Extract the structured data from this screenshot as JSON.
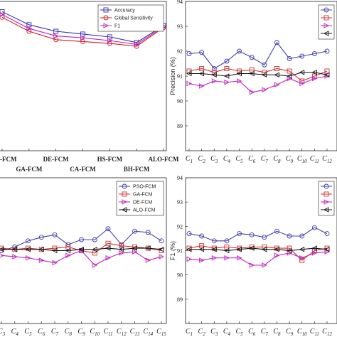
{
  "chart_data": [
    {
      "type": "line",
      "panel": "top-left",
      "categories": [
        "PSO-FCM",
        "GA-FCM",
        "DE-FCM",
        "CA-FCM",
        "HS-FCM",
        "BH-FCM",
        "ALO-FCM"
      ],
      "series": [
        {
          "name": "Accuracy",
          "values": [
            92.9,
            91.5,
            90.8,
            90.5,
            90.2,
            89.6,
            91.4
          ],
          "color": "#3030a8",
          "marker": "square"
        },
        {
          "name": "Global Sensitivity",
          "values": [
            92.3,
            90.8,
            89.9,
            89.7,
            89.5,
            89.2,
            91.2
          ],
          "color": "#d02020",
          "marker": "circle"
        },
        {
          "name": "F1",
          "values": [
            92.6,
            91.1,
            90.3,
            90.1,
            89.8,
            89.4,
            91.3
          ],
          "color": "#c020c0",
          "marker": "triangle-right"
        }
      ],
      "ylim": [
        78,
        94
      ],
      "legend": "top-right",
      "grid": false
    },
    {
      "type": "line",
      "panel": "top-right",
      "categories": [
        "1",
        "2",
        "3",
        "4",
        "5",
        "6",
        "7",
        "8",
        "9",
        "10",
        "11",
        "12"
      ],
      "ylabel": "Precision (%)",
      "ylim": [
        88,
        94
      ],
      "yticks": [
        89,
        90,
        91,
        92,
        93,
        94
      ],
      "series": [
        {
          "values": [
            91.9,
            91.95,
            91.3,
            91.6,
            92.0,
            91.75,
            91.45,
            92.35,
            91.7,
            91.8,
            91.9,
            92.0
          ],
          "color": "#4040b0",
          "marker": "circle"
        },
        {
          "values": [
            91.2,
            91.3,
            91.15,
            91.3,
            91.2,
            91.25,
            91.15,
            91.3,
            91.2,
            90.8,
            91.0,
            91.2
          ],
          "color": "#d03030",
          "marker": "square"
        },
        {
          "values": [
            90.7,
            90.6,
            90.8,
            90.75,
            90.8,
            90.35,
            90.45,
            90.65,
            90.9,
            90.7,
            90.9,
            91.0
          ],
          "color": "#c020c0",
          "marker": "triangle-right"
        },
        {
          "values": [
            91.1,
            91.1,
            91.05,
            91.0,
            91.1,
            91.1,
            91.05,
            91.05,
            91.0,
            91.15,
            91.15,
            91.05
          ],
          "color": "#111111",
          "marker": "triangle-left"
        }
      ],
      "legend": "top-right",
      "grid": false
    },
    {
      "type": "line",
      "panel": "bottom-left",
      "categories": [
        "3",
        "4",
        "5",
        "6",
        "7",
        "8",
        "9",
        "10",
        "11",
        "12",
        "13",
        "14",
        "15"
      ],
      "ylim": [
        88,
        94
      ],
      "series": [
        {
          "name": "PSO-FCM",
          "values": [
            91.0,
            91.15,
            91.4,
            91.55,
            91.65,
            91.25,
            91.45,
            91.45,
            91.9,
            91.25,
            91.8,
            91.75,
            91.4
          ],
          "color": "#4040b0",
          "marker": "circle"
        },
        {
          "name": "GA-FCM",
          "values": [
            91.1,
            91.05,
            91.1,
            91.05,
            91.1,
            91.15,
            91.0,
            90.9,
            91.3,
            91.2,
            91.15,
            91.1,
            91.0
          ],
          "color": "#d03030",
          "marker": "square"
        },
        {
          "name": "DE-FCM",
          "values": [
            90.8,
            90.75,
            90.7,
            90.6,
            90.5,
            90.8,
            91.0,
            90.4,
            90.7,
            90.9,
            90.95,
            90.6,
            90.75
          ],
          "color": "#c020c0",
          "marker": "triangle-right"
        },
        {
          "name": "ALO-FCM",
          "values": [
            91.05,
            91.05,
            91.05,
            91.05,
            91.0,
            91.0,
            91.05,
            91.05,
            91.1,
            91.05,
            91.1,
            91.1,
            91.05
          ],
          "color": "#111111",
          "marker": "triangle-left"
        }
      ],
      "legend": "top-right",
      "grid": false
    },
    {
      "type": "line",
      "panel": "bottom-right",
      "categories": [
        "1",
        "2",
        "3",
        "4",
        "5",
        "6",
        "7",
        "8",
        "9",
        "10",
        "11",
        "12"
      ],
      "ylabel": "F1 (%)",
      "ylim": [
        88,
        94
      ],
      "yticks": [
        89,
        90,
        91,
        92,
        93,
        94
      ],
      "series": [
        {
          "values": [
            91.7,
            91.6,
            91.4,
            91.4,
            91.7,
            91.65,
            91.55,
            91.8,
            91.6,
            91.6,
            91.95,
            91.7
          ],
          "color": "#4040b0",
          "marker": "circle"
        },
        {
          "values": [
            91.1,
            91.2,
            91.1,
            91.15,
            91.1,
            91.15,
            91.15,
            91.1,
            91.1,
            90.6,
            91.0,
            91.1
          ],
          "color": "#d03030",
          "marker": "square"
        },
        {
          "values": [
            90.65,
            90.6,
            90.7,
            90.7,
            90.7,
            90.4,
            90.4,
            90.8,
            90.9,
            90.7,
            90.9,
            90.95
          ],
          "color": "#c020c0",
          "marker": "triangle-right"
        },
        {
          "values": [
            91.05,
            91.05,
            91.05,
            91.0,
            91.05,
            91.1,
            91.05,
            91.05,
            91.0,
            91.05,
            91.1,
            91.05
          ],
          "color": "#111111",
          "marker": "triangle-left"
        }
      ],
      "legend": "top-right",
      "grid": false
    }
  ]
}
